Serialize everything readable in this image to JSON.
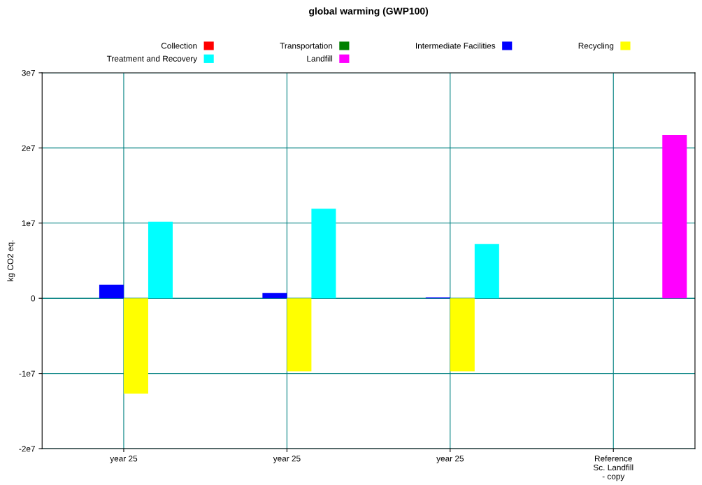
{
  "chart_data": {
    "type": "bar",
    "title": "global warming (GWP100)",
    "ylabel": "kg CO2 eq.",
    "categories": [
      "year 25",
      "year 25",
      "year 25",
      "Reference\nSc. Landfill\n- copy"
    ],
    "series": [
      {
        "name": "Collection",
        "color": "#ff0000",
        "values": [
          0,
          0,
          0,
          0
        ]
      },
      {
        "name": "Transportation",
        "color": "#008000",
        "values": [
          0,
          0,
          0,
          0
        ]
      },
      {
        "name": "Intermediate Facilities",
        "color": "#0000ff",
        "values": [
          1800000,
          700000,
          100000,
          0
        ]
      },
      {
        "name": "Recycling",
        "color": "#ffff00",
        "values": [
          -12700000,
          -9700000,
          -9700000,
          0
        ]
      },
      {
        "name": "Treatment and Recovery",
        "color": "#00ffff",
        "values": [
          10200000,
          11900000,
          7200000,
          0
        ]
      },
      {
        "name": "Landfill",
        "color": "#ff00ff",
        "values": [
          0,
          0,
          0,
          21700000
        ]
      }
    ],
    "ylim": [
      -20000000,
      30000000
    ],
    "yticks": [
      {
        "value": -20000000,
        "label": "-2e7"
      },
      {
        "value": -10000000,
        "label": "-1e7"
      },
      0,
      {
        "value": 10000000,
        "label": "1e7"
      },
      {
        "value": 20000000,
        "label": "2e7"
      },
      {
        "value": 30000000,
        "label": "3e7"
      }
    ],
    "grid": true,
    "legend": "top"
  }
}
